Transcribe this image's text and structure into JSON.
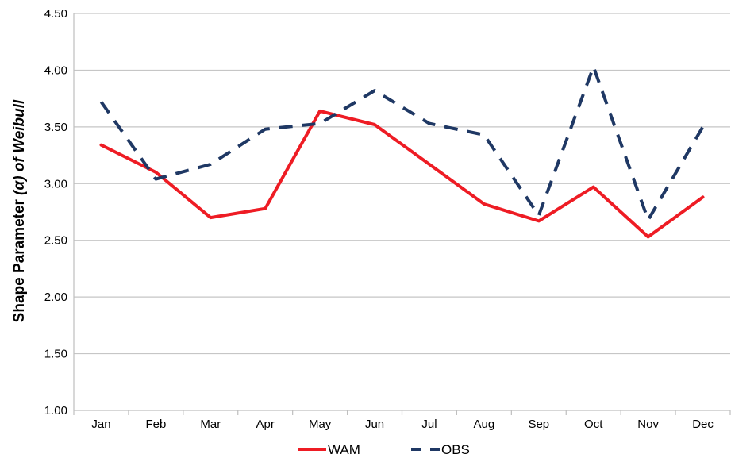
{
  "chart_data": {
    "type": "line",
    "title": "",
    "xlabel": "",
    "ylabel": {
      "prefix": "Shape Parameter ",
      "symbol": "(α) of Weibull"
    },
    "categories": [
      "Jan",
      "Feb",
      "Mar",
      "Apr",
      "May",
      "Jun",
      "Jul",
      "Aug",
      "Sep",
      "Oct",
      "Nov",
      "Dec"
    ],
    "ylim": [
      1.0,
      4.5
    ],
    "yticks": [
      "1.00",
      "1.50",
      "2.00",
      "2.50",
      "3.00",
      "3.50",
      "4.00",
      "4.50"
    ],
    "grid": "horizontal",
    "legend_position": "bottom",
    "series": [
      {
        "name": "WAM",
        "color": "#ee1c24",
        "style": "solid",
        "values": [
          3.34,
          3.1,
          2.7,
          2.78,
          3.64,
          3.52,
          3.17,
          2.82,
          2.67,
          2.97,
          2.53,
          2.88
        ]
      },
      {
        "name": "OBS",
        "color": "#1f3864",
        "style": "dashed",
        "values": [
          3.72,
          3.04,
          3.17,
          3.48,
          3.53,
          3.82,
          3.53,
          3.43,
          2.72,
          4.03,
          2.68,
          3.5
        ]
      }
    ]
  }
}
